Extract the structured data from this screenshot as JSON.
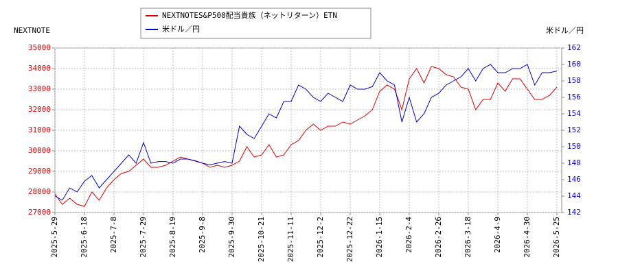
{
  "chart_data": {
    "type": "line",
    "y_label": "NEXTNOTE",
    "y2_label": "米ドル／円",
    "categories": [
      "2025-5-29",
      null,
      null,
      null,
      "2025-6-18",
      null,
      null,
      null,
      "2025-7-8",
      null,
      null,
      null,
      "2025-7-29",
      null,
      null,
      null,
      "2025-8-19",
      null,
      null,
      null,
      "2025-9-8",
      null,
      null,
      null,
      "2025-9-30",
      null,
      null,
      null,
      "2025-10-21",
      null,
      null,
      null,
      "2025-11-11",
      null,
      null,
      null,
      "2025-12-2",
      null,
      null,
      null,
      "2025-12-22",
      null,
      null,
      null,
      "2026-1-15",
      null,
      null,
      null,
      "2026-2-4",
      null,
      null,
      null,
      "2026-2-26",
      null,
      null,
      null,
      "2026-3-18",
      null,
      null,
      null,
      "2026-4-9",
      null,
      null,
      null,
      "2026-4-30",
      null,
      null,
      null,
      "2026-5-25"
    ],
    "series": [
      {
        "name": "NEXTNOTES&P500配当貴族（ネットリターン）ETN",
        "color": "#dd0000",
        "axis": "y",
        "values": [
          27900,
          27400,
          27700,
          27400,
          27300,
          28000,
          27600,
          28200,
          28600,
          28900,
          29000,
          29300,
          29600,
          29200,
          29200,
          29300,
          29500,
          29700,
          29600,
          29500,
          29400,
          29200,
          29300,
          29200,
          29300,
          29500,
          30200,
          29700,
          29800,
          30300,
          29700,
          29800,
          30300,
          30500,
          31000,
          31300,
          31000,
          31200,
          31200,
          31400,
          31300,
          31500,
          31700,
          32000,
          32900,
          33200,
          33000,
          32000,
          33500,
          34000,
          33300,
          34100,
          34000,
          33700,
          33600,
          33100,
          33000,
          32000,
          32500,
          32500,
          33300,
          32900,
          33500,
          33500,
          33000,
          32500,
          32500,
          32700,
          33100
        ]
      },
      {
        "name": "米ドル／円",
        "color": "#0000cc",
        "axis": "y2",
        "values": [
          144,
          143.5,
          145,
          144.5,
          145.8,
          146.5,
          145,
          146,
          147,
          148,
          149,
          148,
          150.5,
          148,
          148.2,
          148.2,
          148,
          148.5,
          148.5,
          148.3,
          148,
          147.8,
          148,
          148.2,
          148,
          152.5,
          151.5,
          151,
          152.5,
          154,
          153.5,
          155.5,
          155.5,
          157.5,
          157,
          156,
          155.5,
          156.5,
          156,
          155.5,
          157.5,
          157,
          157,
          157.3,
          159,
          158,
          157.5,
          153,
          156,
          153,
          154,
          156,
          156.5,
          157.5,
          158,
          158.5,
          159.5,
          158,
          159.5,
          160,
          159,
          159,
          159.5,
          159.5,
          160,
          157.5,
          159,
          159,
          159.2
        ]
      }
    ],
    "ylim": [
      27000,
      35000
    ],
    "yticks": [
      27000,
      28000,
      29000,
      30000,
      31000,
      32000,
      33000,
      34000,
      35000
    ],
    "y2lim": [
      142,
      162
    ],
    "y2ticks": [
      142,
      144,
      146,
      148,
      150,
      152,
      154,
      156,
      158,
      160,
      162
    ],
    "grid": true
  }
}
